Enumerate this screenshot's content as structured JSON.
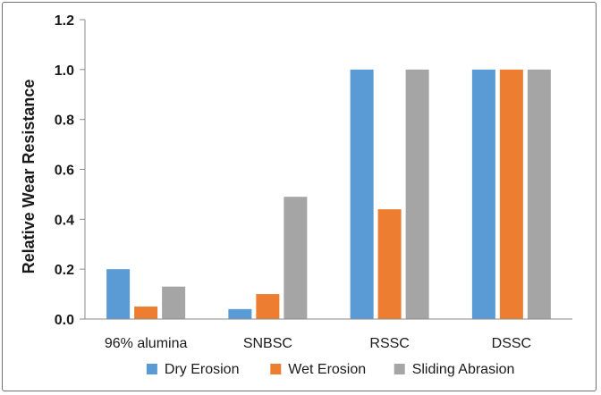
{
  "chart_data": {
    "type": "bar",
    "categories": [
      "96% alumina",
      "SNBSC",
      "RSSC",
      "DSSC"
    ],
    "series": [
      {
        "name": "Dry Erosion",
        "values": [
          0.2,
          0.04,
          1.0,
          1.0
        ],
        "color": "#5b9bd5"
      },
      {
        "name": "Wet Erosion",
        "values": [
          0.05,
          0.1,
          0.44,
          1.0
        ],
        "color": "#ed7d31"
      },
      {
        "name": "Sliding Abrasion",
        "values": [
          0.13,
          0.49,
          1.0,
          1.0
        ],
        "color": "#a5a5a5"
      }
    ],
    "title": "",
    "xlabel": "",
    "ylabel": "Relative Wear Resistance",
    "ylim": [
      0,
      1.2
    ],
    "yticks": [
      "0.0",
      "0.2",
      "0.4",
      "0.6",
      "0.8",
      "1.0",
      "1.2"
    ],
    "grid": false,
    "legend_position": "bottom"
  }
}
